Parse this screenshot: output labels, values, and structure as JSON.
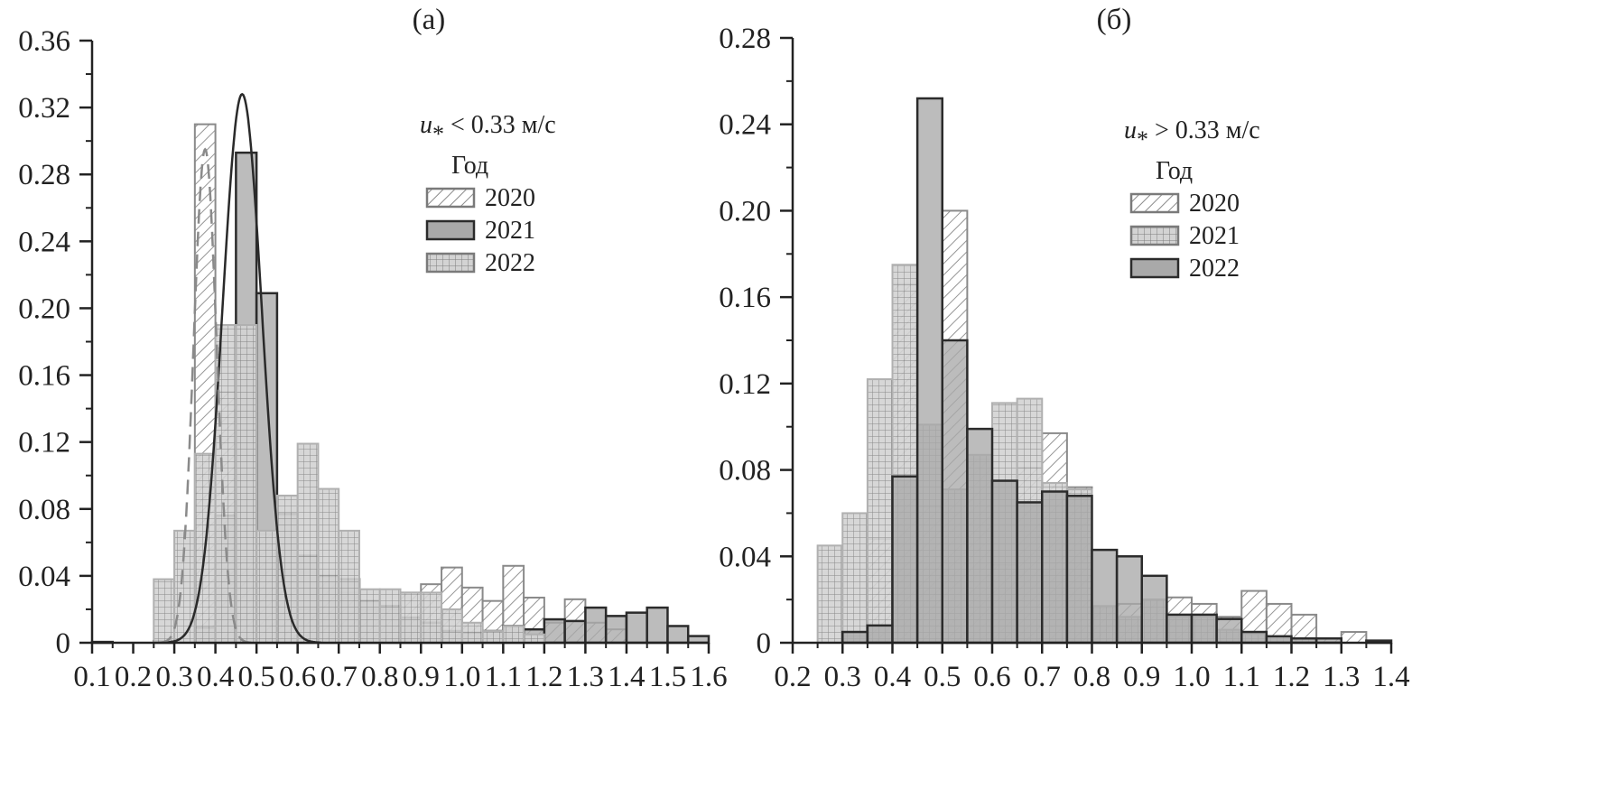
{
  "chart_data": [
    {
      "type": "bar",
      "title": "(а)",
      "xlabel": "",
      "ylabel": "",
      "xlim": [
        0.1,
        1.6
      ],
      "ylim": [
        0,
        0.36
      ],
      "bin_width": 0.05,
      "x_ticks": [
        "0.1",
        "0.2",
        "0.3",
        "0.4",
        "0.5",
        "0.6",
        "0.7",
        "0.8",
        "0.9",
        "1.0",
        "1.1",
        "1.2",
        "1.3",
        "1.4",
        "1.5",
        "1.6"
      ],
      "y_ticks": [
        "0",
        "0.04",
        "0.08",
        "0.12",
        "0.16",
        "0.20",
        "0.24",
        "0.28",
        "0.32",
        "0.36"
      ],
      "legend": {
        "condition_prefix": "u",
        "condition_sub": "*",
        "condition_suffix": " < 0.33 м/с",
        "header": "Год",
        "position": "top-right"
      },
      "series": [
        {
          "name": "2020",
          "style": "hatched",
          "color": "#8a8a8a",
          "bins": [
            [
              0.35,
              0.31
            ],
            [
              0.4,
              0.15
            ],
            [
              0.45,
              0.05
            ],
            [
              0.5,
              0.065
            ],
            [
              0.55,
              0.04
            ],
            [
              0.6,
              0.02
            ],
            [
              0.65,
              0.04
            ],
            [
              0.7,
              0.03
            ],
            [
              0.75,
              0.02
            ],
            [
              0.8,
              0.02
            ],
            [
              0.85,
              0.03
            ],
            [
              0.9,
              0.035
            ],
            [
              0.95,
              0.045
            ],
            [
              1.0,
              0.033
            ],
            [
              1.05,
              0.025
            ],
            [
              1.1,
              0.046
            ],
            [
              1.15,
              0.027
            ],
            [
              1.2,
              0.012
            ],
            [
              1.25,
              0.026
            ],
            [
              1.3,
              0.012
            ],
            [
              1.35,
              0.008
            ]
          ]
        },
        {
          "name": "2021",
          "style": "solid",
          "color": "#a9a9a9",
          "bins": [
            [
              0.1,
              0.0005
            ],
            [
              0.25,
              0.001
            ],
            [
              0.35,
              0.009
            ],
            [
              0.4,
              0.076
            ],
            [
              0.45,
              0.293
            ],
            [
              0.5,
              0.209
            ],
            [
              0.55,
              0.077
            ],
            [
              0.6,
              0.052
            ],
            [
              0.65,
              0.04
            ],
            [
              0.7,
              0.038
            ],
            [
              0.75,
              0.025
            ],
            [
              0.8,
              0.022
            ],
            [
              0.85,
              0.015
            ],
            [
              0.9,
              0.012
            ],
            [
              0.95,
              0.007
            ],
            [
              1.0,
              0.006
            ],
            [
              1.05,
              0.007
            ],
            [
              1.1,
              0.01
            ],
            [
              1.15,
              0.008
            ],
            [
              1.2,
              0.014
            ],
            [
              1.25,
              0.013
            ],
            [
              1.3,
              0.021
            ],
            [
              1.35,
              0.016
            ],
            [
              1.4,
              0.018
            ],
            [
              1.45,
              0.021
            ],
            [
              1.5,
              0.01
            ],
            [
              1.55,
              0.004
            ]
          ]
        },
        {
          "name": "2022",
          "style": "grid",
          "color": "#c8c8c8",
          "bins": [
            [
              0.25,
              0.038
            ],
            [
              0.3,
              0.067
            ],
            [
              0.35,
              0.113
            ],
            [
              0.4,
              0.19
            ],
            [
              0.45,
              0.19
            ],
            [
              0.5,
              0.067
            ],
            [
              0.55,
              0.088
            ],
            [
              0.6,
              0.119
            ],
            [
              0.65,
              0.092
            ],
            [
              0.7,
              0.067
            ],
            [
              0.75,
              0.032
            ],
            [
              0.8,
              0.032
            ],
            [
              0.85,
              0.03
            ],
            [
              0.9,
              0.03
            ],
            [
              0.95,
              0.02
            ],
            [
              1.0,
              0.012
            ],
            [
              1.05,
              0.007
            ],
            [
              1.1,
              0.01
            ],
            [
              1.15,
              0.005
            ]
          ]
        }
      ],
      "curves": [
        {
          "name": "2021",
          "style": "solid",
          "color": "#2a2a2a",
          "mu": 0.465,
          "sigma": 0.048,
          "peak": 0.328
        },
        {
          "name": "2020",
          "style": "dashed",
          "color": "#8a8a8a",
          "mu": 0.375,
          "sigma": 0.028,
          "peak": 0.295
        }
      ]
    },
    {
      "type": "bar",
      "title": "(б)",
      "xlabel": "",
      "ylabel": "",
      "xlim": [
        0.2,
        1.4
      ],
      "ylim": [
        0,
        0.28
      ],
      "bin_width": 0.05,
      "x_ticks": [
        "0.2",
        "0.3",
        "0.4",
        "0.5",
        "0.6",
        "0.7",
        "0.8",
        "0.9",
        "1.0",
        "1.1",
        "1.2",
        "1.3",
        "1.4"
      ],
      "y_ticks": [
        "0",
        "0.04",
        "0.08",
        "0.12",
        "0.16",
        "0.20",
        "0.24",
        "0.28"
      ],
      "legend": {
        "condition_prefix": "u",
        "condition_sub": "*",
        "condition_suffix": " > 0.33 м/с",
        "header": "Год",
        "position": "top-right"
      },
      "series": [
        {
          "name": "2020",
          "style": "hatched",
          "color": "#8a8a8a",
          "bins": [
            [
              0.3,
              0.003
            ],
            [
              0.35,
              0.048
            ],
            [
              0.4,
              0.166
            ],
            [
              0.45,
              0.063
            ],
            [
              0.5,
              0.2
            ],
            [
              0.55,
              0.085
            ],
            [
              0.6,
              0.036
            ],
            [
              0.65,
              0.081
            ],
            [
              0.7,
              0.097
            ],
            [
              0.75,
              0.072
            ],
            [
              0.8,
              0.016
            ],
            [
              0.85,
              0.018
            ],
            [
              0.9,
              0.02
            ],
            [
              0.95,
              0.021
            ],
            [
              1.0,
              0.018
            ],
            [
              1.05,
              0.012
            ],
            [
              1.1,
              0.024
            ],
            [
              1.15,
              0.018
            ],
            [
              1.2,
              0.013
            ],
            [
              1.25,
              0.002
            ],
            [
              1.3,
              0.005
            ]
          ]
        },
        {
          "name": "2021",
          "style": "grid",
          "color": "#d0d0d0",
          "bins": [
            [
              0.25,
              0.045
            ],
            [
              0.3,
              0.06
            ],
            [
              0.35,
              0.122
            ],
            [
              0.4,
              0.175
            ],
            [
              0.45,
              0.101
            ],
            [
              0.5,
              0.071
            ],
            [
              0.55,
              0.087
            ],
            [
              0.6,
              0.111
            ],
            [
              0.65,
              0.113
            ],
            [
              0.7,
              0.074
            ],
            [
              0.75,
              0.071
            ],
            [
              0.8,
              0.017
            ],
            [
              0.85,
              0.012
            ],
            [
              0.9,
              0.02
            ],
            [
              0.95,
              0.012
            ],
            [
              1.0,
              0.012
            ],
            [
              1.05,
              0.006
            ],
            [
              1.1,
              0.004
            ],
            [
              1.15,
              0.003
            ],
            [
              1.2,
              0.002
            ]
          ]
        },
        {
          "name": "2022",
          "style": "solid",
          "color": "#a9a9a9",
          "bins": [
            [
              0.3,
              0.005
            ],
            [
              0.35,
              0.008
            ],
            [
              0.4,
              0.077
            ],
            [
              0.45,
              0.252
            ],
            [
              0.5,
              0.14
            ],
            [
              0.55,
              0.099
            ],
            [
              0.6,
              0.075
            ],
            [
              0.65,
              0.065
            ],
            [
              0.7,
              0.07
            ],
            [
              0.75,
              0.068
            ],
            [
              0.8,
              0.043
            ],
            [
              0.85,
              0.04
            ],
            [
              0.9,
              0.031
            ],
            [
              0.95,
              0.013
            ],
            [
              1.0,
              0.013
            ],
            [
              1.05,
              0.011
            ],
            [
              1.1,
              0.005
            ],
            [
              1.15,
              0.003
            ],
            [
              1.2,
              0.002
            ],
            [
              1.25,
              0.002
            ],
            [
              1.35,
              0.001
            ]
          ]
        }
      ],
      "curves": []
    }
  ]
}
